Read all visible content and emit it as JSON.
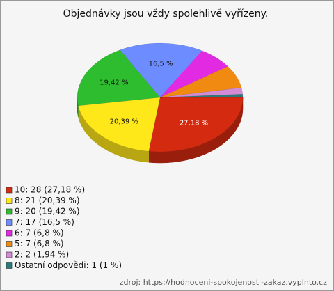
{
  "chart_data": {
    "type": "pie",
    "title": "Objednávky jsou vždy spolehlivě vyřízeny.",
    "categories": [
      "10: 28 (27,18 %)",
      "8: 21 (20,39 %)",
      "9: 20 (19,42 %)",
      "7: 17 (16,5 %)",
      "6: 7 (6,8 %)",
      "5: 7 (6,8 %)",
      "2: 2 (1,94 %)",
      "Ostatní odpovědi: 1 (1 %)"
    ],
    "values": [
      27.18,
      20.39,
      19.42,
      16.5,
      6.8,
      6.8,
      1.94,
      0.97
    ],
    "value_labels": [
      "27,18 %",
      "20,39 %",
      "19,42 %",
      "16,5 %",
      null,
      null,
      null,
      null
    ],
    "colors": [
      "#d42a10",
      "#ffe81a",
      "#2ebd2e",
      "#6c8cff",
      "#e22ae2",
      "#f08a10",
      "#d48ad4",
      "#2a7a7a"
    ],
    "source": "zdroj: https://hodnoceni-spokojenosti-zakaz.vyplnto.cz"
  }
}
